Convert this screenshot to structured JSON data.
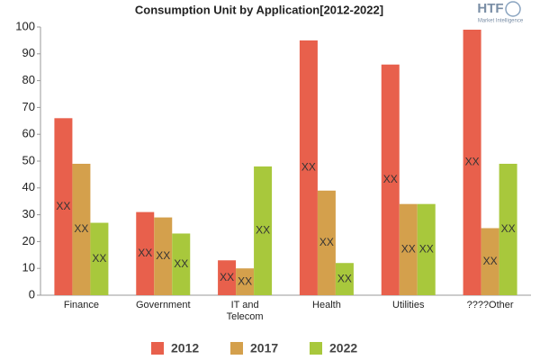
{
  "chart_data": {
    "type": "bar",
    "title": "Consumption Unit by  Application[2012-2022]",
    "logo": {
      "mark": "HTF",
      "tagline": "Market Intelligence"
    },
    "categories": [
      "Finance",
      "Government",
      "IT and Telecom",
      "Health",
      "Utilities",
      "????Other"
    ],
    "series": [
      {
        "name": "2012",
        "color": "#e8604c",
        "values": [
          66,
          31,
          13,
          95,
          86,
          99
        ],
        "value_labels": [
          "XX",
          "XX",
          "XX",
          "XX",
          "XX",
          "XX"
        ]
      },
      {
        "name": "2017",
        "color": "#d4a04c",
        "values": [
          49,
          29,
          10,
          39,
          34,
          25
        ],
        "value_labels": [
          "XX",
          "XX",
          "XX",
          "XX",
          "XX",
          "XX"
        ]
      },
      {
        "name": "2022",
        "color": "#a8c83c",
        "values": [
          27,
          23,
          48,
          12,
          34,
          49
        ],
        "value_labels": [
          "XX",
          "XX",
          "XX",
          "XX",
          "XX",
          "XX"
        ]
      }
    ],
    "ylim": [
      0,
      100
    ],
    "yticks": [
      0,
      10,
      20,
      30,
      40,
      50,
      60,
      70,
      80,
      90,
      100
    ],
    "grid": false,
    "legend": "bottom"
  }
}
